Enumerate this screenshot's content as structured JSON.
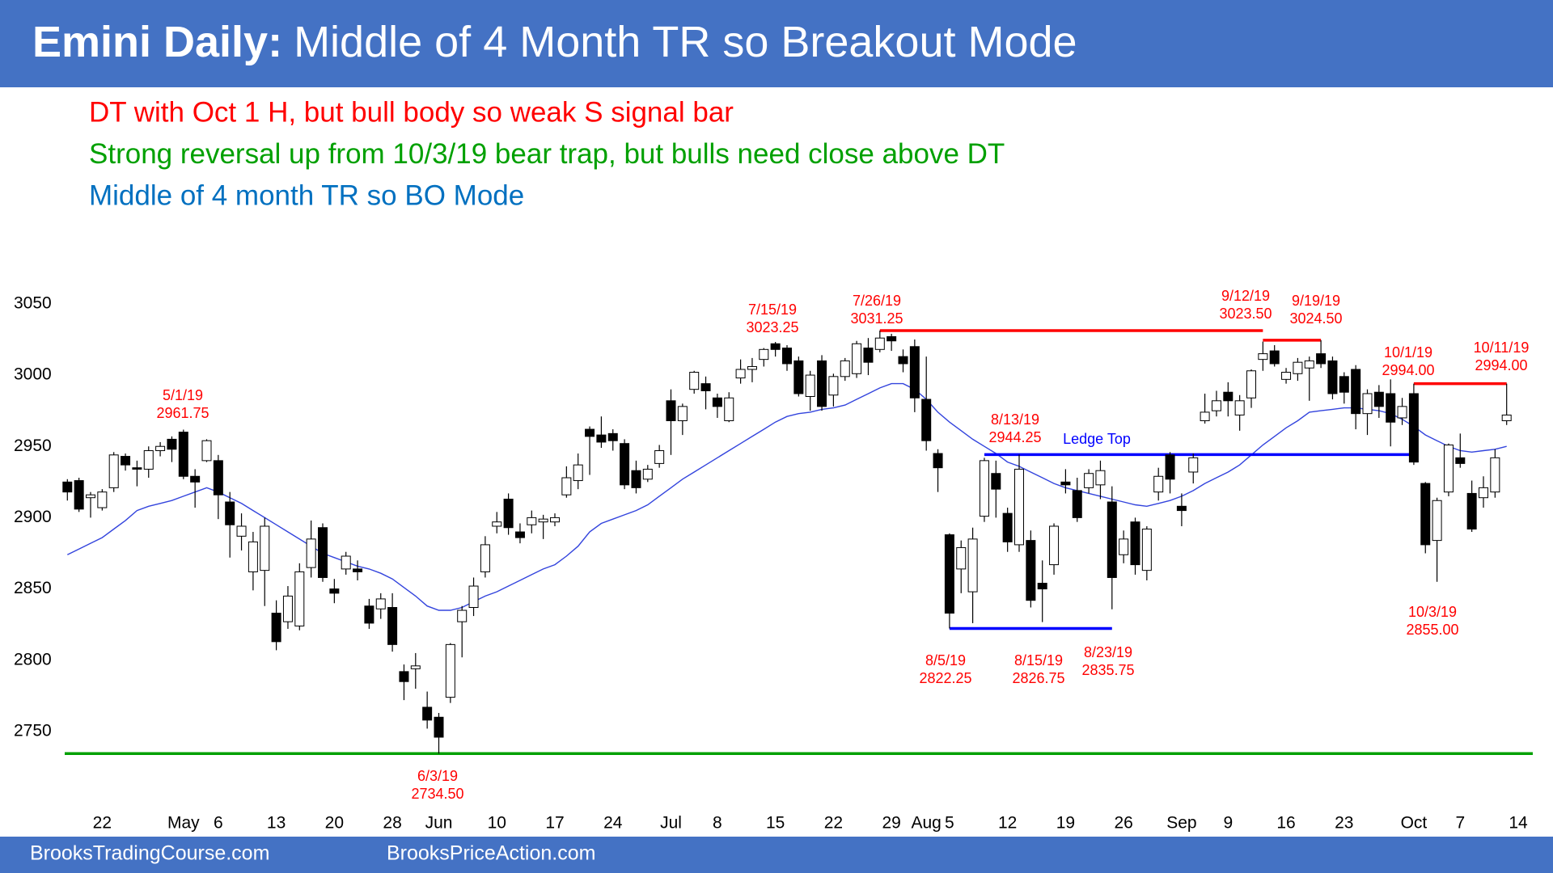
{
  "chart_data": {
    "type": "candlestick",
    "title_bold": "Emini Daily:",
    "title": "Middle of 4 Month TR so Breakout Mode",
    "notes": [
      {
        "text": "DT with Oct 1 H, but bull body so weak S signal bar",
        "color": "#ff0000"
      },
      {
        "text": "Strong reversal up from 10/3/19 bear trap, but bulls need close above DT",
        "color": "#00a000"
      },
      {
        "text": "Middle of 4 month TR so BO Mode",
        "color": "#0070c0"
      }
    ],
    "categories": [
      null,
      null,
      null,
      "22",
      null,
      null,
      null,
      null,
      null,
      null,
      "May",
      null,
      null,
      "6",
      null,
      null,
      null,
      null,
      "13",
      null,
      null,
      null,
      null,
      "20",
      null,
      null,
      null,
      null,
      "28",
      null,
      null,
      null,
      "Jun",
      null,
      null,
      null,
      null,
      "10",
      null,
      null,
      null,
      null,
      "17",
      null,
      null,
      null,
      null,
      "24",
      null,
      null,
      null,
      null,
      "Jul",
      null,
      null,
      null,
      "8",
      null,
      null,
      null,
      null,
      "15",
      null,
      null,
      null,
      null,
      "22",
      null,
      null,
      null,
      null,
      "29",
      null,
      null,
      "Aug",
      null,
      "5",
      null,
      null,
      null,
      null,
      "12",
      null,
      null,
      null,
      null,
      "19",
      null,
      null,
      null,
      null,
      "26",
      null,
      null,
      null,
      null,
      "Sep",
      null,
      null,
      null,
      "9",
      null,
      null,
      null,
      null,
      "16",
      null,
      null,
      null,
      null,
      "23",
      null,
      null,
      null,
      null,
      null,
      "Oct",
      null,
      null,
      null,
      "7",
      null,
      null,
      null,
      null,
      "14"
    ],
    "open": [
      2925,
      2926,
      2914,
      2907,
      2921,
      2943,
      2935,
      2934,
      2947,
      2955,
      2960,
      2929,
      2940,
      2940,
      2911,
      2887,
      2862,
      2863,
      2833,
      2827,
      2824,
      2865,
      2893,
      2850,
      2864,
      2864,
      2838,
      2836,
      2837,
      2792,
      2794,
      2767,
      2760,
      2774,
      2827,
      2837,
      2862,
      2894,
      2913,
      2890,
      2895,
      2897,
      2897,
      2916,
      2926,
      2962,
      2958,
      2959,
      2952,
      2933,
      2927,
      2938,
      2982,
      2968,
      2990,
      2994,
      2984,
      2968,
      2998,
      3004,
      3011,
      3022,
      3019,
      3010,
      2985,
      3010,
      2986,
      2999,
      3001,
      3019,
      3018,
      3027,
      3013,
      3020,
      2983,
      2945,
      2888,
      2864,
      2848,
      2901,
      2931,
      2903,
      2881,
      2884,
      2854,
      2867,
      2925,
      2919,
      2921,
      2923,
      2911,
      2874,
      2897,
      2863,
      2918,
      2944,
      2908,
      2932,
      2968,
      2975,
      2988,
      2972,
      2984,
      3011,
      3017,
      2997,
      3001,
      3005,
      3015,
      3010,
      2999,
      3004,
      2973,
      2988,
      2987,
      2970,
      2987,
      2924,
      2884,
      2918,
      2942,
      2917,
      2914,
      2918,
      2968,
      null
    ],
    "high": [
      2927,
      2928,
      2918,
      2920,
      2946,
      2945,
      2940,
      2950,
      2953,
      2957,
      2961.75,
      2934,
      2955,
      2944,
      2918,
      2903,
      2890,
      2900,
      2842,
      2852,
      2868,
      2898,
      2896,
      2857,
      2876,
      2870,
      2843,
      2847,
      2847,
      2797,
      2805,
      2778,
      2763,
      2812,
      2838,
      2858,
      2887,
      2904,
      2917,
      2896,
      2905,
      2902,
      2903,
      2936,
      2945,
      2964,
      2971,
      2962,
      2955,
      2940,
      2937,
      2951,
      2990,
      2980,
      3003,
      2999,
      2987,
      2988,
      3011,
      3012,
      3019,
      3023.25,
      3021,
      3013,
      3003,
      3014,
      3001,
      3012,
      3024,
      3026,
      3031.25,
      3029,
      3018,
      3025,
      3013,
      2948,
      2889,
      2884,
      2893,
      2942,
      2940,
      2907,
      2944.25,
      2891,
      2870,
      2896,
      2934,
      2928,
      2934,
      2940,
      2922,
      2891,
      2900,
      2894,
      2935,
      2946,
      2917,
      2945,
      2987,
      2989,
      2995,
      2986,
      3004,
      3023.5,
      3021,
      3005,
      3012,
      3013,
      3024.5,
      3013,
      3002,
      3007,
      2990,
      2993,
      2997,
      2984,
      2994,
      2925,
      2914,
      2952,
      2959,
      2926,
      2929,
      2948,
      2994,
      null
    ],
    "low": [
      2912,
      2904,
      2900,
      2905,
      2918,
      2933,
      2922,
      2928,
      2943,
      2939,
      2927,
      2907,
      2939,
      2899,
      2872,
      2877,
      2849,
      2838,
      2807,
      2822,
      2821,
      2858,
      2855,
      2840,
      2860,
      2856,
      2822,
      2829,
      2806,
      2772,
      2780,
      2752,
      2734.5,
      2770,
      2802,
      2831,
      2858,
      2889,
      2888,
      2882,
      2889,
      2885,
      2894,
      2914,
      2920,
      2930,
      2949,
      2947,
      2920,
      2917,
      2925,
      2935,
      2944,
      2958,
      2987,
      2976,
      2970,
      2967,
      2994,
      2995,
      3006,
      3013,
      3003,
      2985,
      2975,
      2975,
      2978,
      2996,
      2998,
      3000,
      3016,
      3017,
      3002,
      2974,
      2947,
      2918,
      2822.25,
      2847,
      2826,
      2897,
      2900,
      2876,
      2876,
      2837,
      2826.75,
      2860,
      2917,
      2897,
      2917,
      2913,
      2835.75,
      2868,
      2860,
      2856,
      2912,
      2917,
      2894,
      2924,
      2966,
      2971,
      2971,
      2961,
      2977,
      3003,
      3006,
      2994,
      2996,
      2982,
      3005,
      2983,
      2980,
      2962,
      2958,
      2970,
      2950,
      2965,
      2937,
      2875,
      2855,
      2915,
      2935,
      2890,
      2907,
      2914,
      2965,
      null
    ],
    "close": [
      2918,
      2906,
      2916,
      2918,
      2944,
      2937,
      2934,
      2947,
      2950,
      2948,
      2929,
      2925,
      2954,
      2916,
      2895,
      2894,
      2883,
      2894,
      2813,
      2845,
      2862,
      2885,
      2858,
      2847,
      2873,
      2862,
      2826,
      2843,
      2811,
      2785,
      2796,
      2758,
      2746,
      2811,
      2835,
      2852,
      2881,
      2897,
      2893,
      2886,
      2900,
      2899,
      2900,
      2928,
      2937,
      2957,
      2953,
      2954,
      2923,
      2921,
      2934,
      2947,
      2968,
      2978,
      3002,
      2989,
      2978,
      2984,
      3004,
      3006,
      3018,
      3018,
      3008,
      2987,
      3000,
      2978,
      2999,
      3010,
      3022,
      3009,
      3026,
      3024,
      3008,
      2984,
      2954,
      2935,
      2833,
      2879,
      2885,
      2940,
      2920,
      2883,
      2934,
      2842,
      2850,
      2894,
      2923,
      2900,
      2931,
      2933,
      2858,
      2885,
      2867,
      2892,
      2929,
      2927,
      2905,
      2942,
      2974,
      2982,
      2982,
      2982,
      3003,
      3015,
      3008,
      3002,
      3009,
      3010,
      3008,
      2987,
      2988,
      2973,
      2987,
      2978,
      2967,
      2978,
      2939,
      2881,
      2912,
      2951,
      2938,
      2892,
      2921,
      2942,
      2972,
      null
    ],
    "up_color": "#ffffff",
    "down_color": "#000000",
    "moving_average": {
      "color": "#3344dd",
      "values": [
        2874,
        2878,
        2882,
        2886,
        2892,
        2898,
        2905,
        2908,
        2910,
        2912,
        2915,
        2918,
        2921,
        2918,
        2914,
        2910,
        2905,
        2900,
        2895,
        2890,
        2885,
        2880,
        2875,
        2872,
        2869,
        2866,
        2864,
        2861,
        2857,
        2851,
        2845,
        2838,
        2835,
        2835,
        2837,
        2841,
        2845,
        2848,
        2852,
        2856,
        2860,
        2864,
        2867,
        2873,
        2880,
        2890,
        2896,
        2899,
        2902,
        2905,
        2909,
        2915,
        2921,
        2927,
        2932,
        2937,
        2942,
        2947,
        2952,
        2957,
        2962,
        2967,
        2971,
        2973,
        2974,
        2976,
        2977,
        2979,
        2983,
        2987,
        2991,
        2994,
        2994,
        2990,
        2983,
        2974,
        2967,
        2961,
        2955,
        2950,
        2945,
        2939,
        2936,
        2932,
        2928,
        2924,
        2921,
        2919,
        2917,
        2915,
        2913,
        2911,
        2909,
        2908,
        2910,
        2912,
        2915,
        2919,
        2924,
        2928,
        2932,
        2937,
        2944,
        2951,
        2957,
        2963,
        2968,
        2974,
        2975,
        2976,
        2977,
        2977,
        2976,
        2975,
        2973,
        2969,
        2964,
        2958,
        2954,
        2950,
        2947,
        2946,
        2947,
        2948,
        2950,
        null
      ]
    },
    "ylim": [
      2700,
      3100
    ],
    "yticks": [
      2750,
      2800,
      2850,
      2900,
      2950,
      3000,
      3050
    ],
    "grid": false,
    "lines": [
      {
        "value": 3031.25,
        "color": "#ff0000"
      },
      {
        "value": 3024.5,
        "color": "#ff0000"
      },
      {
        "value": 2994,
        "color": "#ff0000"
      },
      {
        "value": 2944.25,
        "color": "#0000ff",
        "label": "Ledge Top"
      },
      {
        "value": 2822.25,
        "color": "#0000ff"
      },
      {
        "value": 2734.5,
        "color": "#00a000"
      }
    ],
    "annotations": [
      {
        "date": "5/1/19",
        "price": 2961.75
      },
      {
        "date": "7/15/19",
        "price": 3023.25
      },
      {
        "date": "7/26/19",
        "price": 3031.25
      },
      {
        "date": "9/12/19",
        "price": {
          "value": 3023.5,
          "label": "3023.50"
        }
      },
      {
        "date": "9/19/19",
        "price": {
          "value": 3024.5,
          "label": "3024.50"
        }
      },
      {
        "date": "10/1/19",
        "price": {
          "value": 2994,
          "label": "2994.00"
        }
      },
      {
        "date": "10/11/19",
        "price": {
          "value": 2994,
          "label": "2994.00"
        }
      },
      {
        "date": "8/13/19",
        "price": 2944.25
      },
      {
        "date": "8/5/19",
        "price": 2822.25
      },
      {
        "date": "8/15/19",
        "price": 2826.75
      },
      {
        "date": "8/23/19",
        "price": 2835.75
      },
      {
        "date": "10/3/19",
        "price": {
          "value": 2855,
          "label": "2855.00"
        }
      },
      {
        "date": "6/3/19",
        "price": {
          "value": 2734.5,
          "label": "2734.50"
        }
      }
    ]
  },
  "footer": [
    "BrooksTradingCourse.com",
    "BrooksPriceAction.com"
  ]
}
